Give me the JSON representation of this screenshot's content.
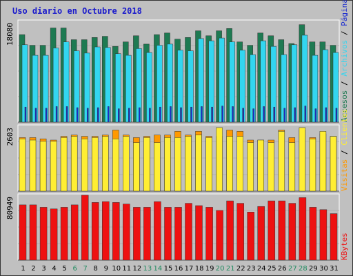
{
  "chart_data": {
    "type": "bar",
    "title": "Uso diario en Octubre 2018",
    "categories": [
      "1",
      "2",
      "3",
      "4",
      "5",
      "6",
      "7",
      "8",
      "9",
      "10",
      "11",
      "12",
      "13",
      "14",
      "15",
      "16",
      "17",
      "18",
      "19",
      "20",
      "21",
      "22",
      "23",
      "24",
      "25",
      "26",
      "27",
      "28",
      "29",
      "30",
      "31"
    ],
    "weekend_days": [
      "6",
      "7",
      "13",
      "14",
      "20",
      "21",
      "27",
      "28"
    ],
    "panels": [
      {
        "id": "top",
        "max_label": "18080",
        "ylim": [
          0,
          18080
        ],
        "legend": [
          "Accesos",
          "Archivos",
          "Páginas"
        ],
        "series": [
          {
            "name": "Accesos",
            "color": "#1e7a52",
            "values": [
              15700,
              13800,
              13800,
              16900,
              16900,
              14800,
              14800,
              15200,
              15400,
              13600,
              14400,
              15500,
              14000,
              15700,
              16000,
              14900,
              15200,
              16400,
              15500,
              16400,
              16800,
              14400,
              13800,
              16000,
              15500,
              14800,
              14100,
              17500,
              14400,
              14400,
              13800
            ]
          },
          {
            "name": "Archivos",
            "color": "#33d6f0",
            "values": [
              13900,
              12000,
              12000,
              13300,
              14400,
              12800,
              12400,
              13500,
              13400,
              12300,
              12000,
              13200,
              12500,
              13800,
              14000,
              12900,
              12800,
              15000,
              14600,
              15100,
              14400,
              12900,
              12100,
              14600,
              13600,
              12100,
              13900,
              15600,
              12000,
              13000,
              12500
            ]
          },
          {
            "name": "Páginas",
            "color": "#1a2bd0",
            "values": [
              2700,
              2500,
              2500,
              2800,
              2800,
              2600,
              2500,
              2600,
              2800,
              2400,
              2500,
              2600,
              2500,
              2700,
              2800,
              2600,
              2700,
              2800,
              2700,
              2900,
              2800,
              2500,
              2400,
              2800,
              2700,
              2500,
              2600,
              2900,
              2400,
              2600,
              2500
            ]
          }
        ]
      },
      {
        "id": "middle",
        "max_label": "2603",
        "ylim": [
          0,
          2603
        ],
        "legend": [
          "Visitas",
          "Clientes"
        ],
        "series": [
          {
            "name": "Visitas",
            "color": "#ff9900",
            "values": [
              2150,
              2150,
              2100,
              2050,
              2200,
              2250,
              2200,
              2200,
              2250,
              2450,
              2250,
              2150,
              2200,
              2250,
              2250,
              2400,
              2250,
              2400,
              2200,
              2200,
              2450,
              2400,
              2050,
              2050,
              2050,
              2450,
              2150,
              2450,
              2150,
              2300,
              2200
            ]
          },
          {
            "name": "Clientes",
            "color": "#ffee33",
            "values": [
              2100,
              2050,
              2000,
              2000,
              2150,
              2200,
              2100,
              2150,
              2200,
              2100,
              2200,
              1950,
              2150,
              1950,
              2150,
              2150,
              2200,
              2250,
              2150,
              2550,
              2200,
              2200,
              1950,
              2050,
              1950,
              2400,
              1950,
              2550,
              2100,
              2400,
              2200
            ]
          }
        ]
      },
      {
        "id": "bottom",
        "max_label": "80949",
        "ylim": [
          0,
          80949
        ],
        "legend": [
          "KBytes"
        ],
        "series": [
          {
            "name": "KBytes",
            "color": "#ee1111",
            "values": [
              69000,
              69000,
              66000,
              64000,
              66000,
              69000,
              81000,
              72000,
              73000,
              72000,
              70000,
              66000,
              66000,
              73000,
              66000,
              66000,
              71000,
              68000,
              66000,
              62000,
              74000,
              71000,
              60000,
              67000,
              74000,
              74000,
              71000,
              78000,
              66000,
              63000,
              58000
            ]
          }
        ]
      }
    ]
  }
}
